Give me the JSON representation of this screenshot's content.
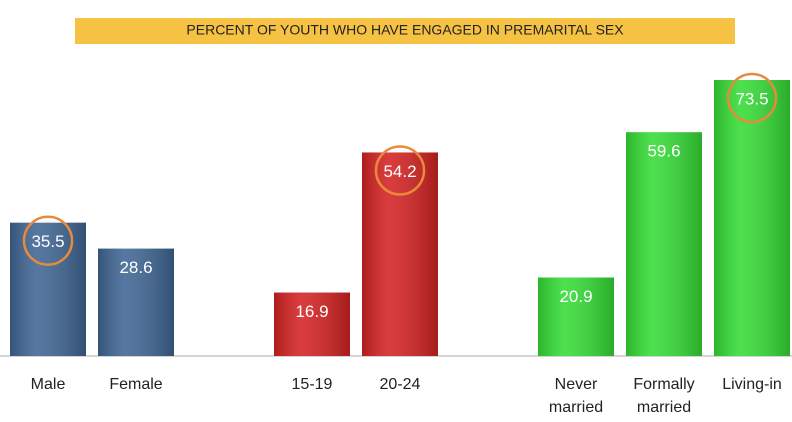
{
  "chart_data": {
    "type": "bar",
    "title": "PERCENT OF YOUTH WHO HAVE ENGAGED IN PREMARITAL SEX",
    "categories": [
      "Male",
      "Female",
      null,
      "15-19",
      "20-24",
      null,
      "Never married",
      "Formally married",
      "Living-in"
    ],
    "values": [
      35.5,
      28.6,
      null,
      16.9,
      54.2,
      null,
      20.9,
      59.6,
      73.5
    ],
    "colors": [
      "#3f6593",
      "#3f6593",
      null,
      "#d42222",
      "#d42222",
      null,
      "#35dc35",
      "#35dc35",
      "#35dc35"
    ],
    "circled": [
      true,
      false,
      false,
      false,
      true,
      false,
      false,
      false,
      true
    ]
  }
}
